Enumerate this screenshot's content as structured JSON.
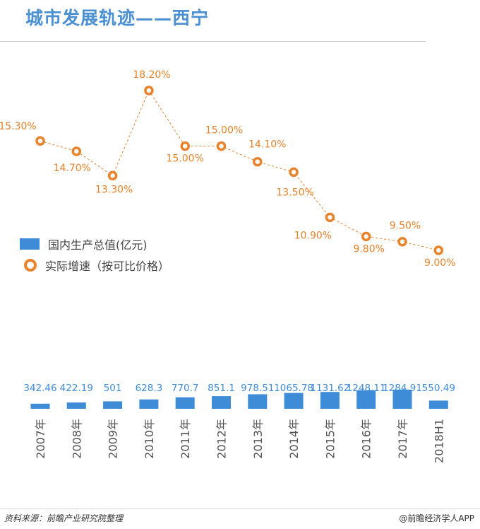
{
  "title": "城市发展轨迹——西宁",
  "footer": {
    "source": "资料来源：前瞻产业研究院整理",
    "app": "@前瞻经济学人APP"
  },
  "colors": {
    "bar": "#3e8bd8",
    "line": "#e8832c",
    "title": "#4a90d2"
  },
  "chart_data": {
    "type": "bar+line",
    "categories": [
      "2007年",
      "2008年",
      "2009年",
      "2010年",
      "2011年",
      "2012年",
      "2013年",
      "2014年",
      "2015年",
      "2016年",
      "2017年",
      "2018H1"
    ],
    "series": [
      {
        "name": "国内生产总值(亿元)",
        "type": "bar",
        "values": [
          342.46,
          422.19,
          501,
          628.3,
          770.7,
          851.1,
          978.51,
          1065.78,
          1131.62,
          1248.11,
          1284.91,
          550.49
        ],
        "labels": [
          "342.46",
          "422.19",
          "501",
          "628.3",
          "770.7",
          "851.1",
          "978.51",
          "1065.78",
          "1131.62",
          "1248.11",
          "1284.91",
          "550.49"
        ]
      },
      {
        "name": "实际增速（按可比价格）",
        "type": "line",
        "values": [
          15.3,
          14.7,
          13.3,
          18.2,
          15.0,
          15.0,
          14.1,
          13.5,
          10.9,
          9.8,
          9.5,
          9.0
        ],
        "labels": [
          "15.30%",
          "14.70%",
          "13.30%",
          "18.20%",
          "15.00%",
          "15.00%",
          "14.10%",
          "13.50%",
          "10.90%",
          "9.80%",
          "9.50%",
          "9.00%"
        ]
      }
    ],
    "legend": "left-middle"
  }
}
